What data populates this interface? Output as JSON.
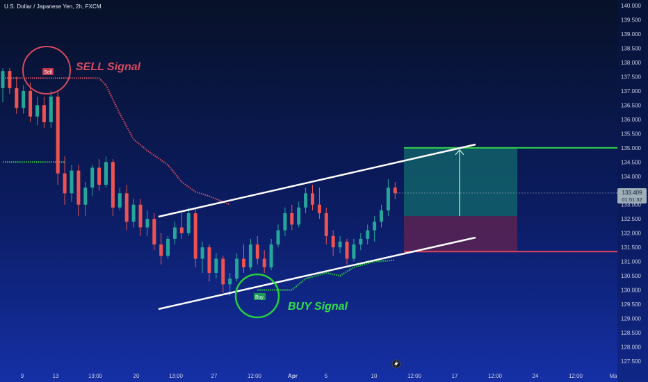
{
  "chart_data": {
    "type": "candlestick",
    "title": "U.S. Dollar / Japanese Yen, 2h, FXCM",
    "ylim": [
      127.4,
      140.1
    ],
    "y_ticks": [
      "140.000",
      "139.500",
      "139.000",
      "138.500",
      "138.000",
      "137.500",
      "137.000",
      "136.500",
      "136.000",
      "135.500",
      "135.000",
      "134.500",
      "134.000",
      "133.500",
      "133.000",
      "132.500",
      "132.000",
      "131.500",
      "131.000",
      "130.500",
      "130.000",
      "129.500",
      "129.000",
      "128.500",
      "128.000",
      "127.500"
    ],
    "x_tick_labels": [
      "9",
      "13",
      "13:00",
      "20",
      "13:00",
      "27",
      "12:00",
      "Apr",
      "5",
      "10",
      "12:00",
      "17",
      "12:00",
      "24",
      "12:00",
      "Ma"
    ],
    "price_label": {
      "value": "133.409",
      "timer": "01:51:32"
    },
    "annotations": {
      "sell_text": "SELL Signal",
      "buy_text": "BUY Signal",
      "sell_marker": "Sell",
      "buy_marker": "Buy"
    },
    "candles": [
      [
        137.1,
        137.8,
        136.6,
        137.7
      ],
      [
        137.7,
        137.8,
        136.9,
        137.1
      ],
      [
        137.1,
        137.5,
        136.2,
        136.4
      ],
      [
        136.4,
        137.2,
        136.2,
        137.0
      ],
      [
        137.0,
        137.3,
        135.9,
        136.1
      ],
      [
        136.1,
        136.8,
        135.8,
        136.5
      ],
      [
        136.5,
        136.8,
        135.7,
        135.9
      ],
      [
        135.9,
        137.0,
        135.7,
        136.8
      ],
      [
        136.8,
        137.0,
        133.7,
        134.1
      ],
      [
        134.1,
        134.7,
        133.0,
        133.4
      ],
      [
        133.4,
        134.4,
        133.1,
        134.2
      ],
      [
        134.2,
        134.4,
        132.6,
        133.0
      ],
      [
        133.0,
        133.8,
        132.6,
        133.6
      ],
      [
        133.6,
        134.4,
        133.3,
        134.3
      ],
      [
        134.3,
        134.6,
        133.5,
        133.7
      ],
      [
        133.7,
        134.7,
        133.6,
        134.5
      ],
      [
        134.5,
        134.6,
        132.6,
        132.9
      ],
      [
        132.9,
        133.6,
        132.8,
        133.4
      ],
      [
        133.4,
        133.7,
        132.1,
        132.4
      ],
      [
        132.4,
        133.2,
        132.2,
        133.0
      ],
      [
        133.0,
        133.2,
        131.9,
        132.2
      ],
      [
        132.2,
        132.8,
        131.9,
        132.5
      ],
      [
        132.5,
        132.7,
        131.4,
        131.6
      ],
      [
        131.6,
        132.0,
        130.9,
        131.2
      ],
      [
        131.2,
        131.9,
        131.1,
        131.8
      ],
      [
        131.8,
        132.4,
        131.6,
        132.2
      ],
      [
        132.2,
        132.7,
        131.8,
        132.0
      ],
      [
        132.0,
        132.9,
        131.9,
        132.7
      ],
      [
        132.7,
        132.9,
        130.8,
        131.1
      ],
      [
        131.1,
        131.7,
        130.6,
        131.5
      ],
      [
        131.5,
        131.6,
        130.3,
        130.6
      ],
      [
        130.6,
        131.3,
        130.4,
        131.1
      ],
      [
        131.1,
        131.2,
        129.9,
        130.2
      ],
      [
        130.2,
        130.6,
        129.8,
        130.4
      ],
      [
        130.4,
        131.3,
        130.3,
        131.1
      ],
      [
        131.1,
        131.6,
        130.6,
        130.8
      ],
      [
        130.8,
        131.8,
        130.7,
        131.6
      ],
      [
        131.6,
        131.9,
        130.9,
        131.1
      ],
      [
        131.1,
        131.4,
        130.6,
        130.8
      ],
      [
        130.8,
        131.8,
        130.7,
        131.6
      ],
      [
        131.6,
        132.3,
        131.5,
        132.1
      ],
      [
        132.1,
        132.9,
        131.9,
        132.7
      ],
      [
        132.7,
        133.0,
        132.1,
        132.3
      ],
      [
        132.3,
        133.1,
        132.2,
        132.9
      ],
      [
        132.9,
        133.6,
        132.7,
        133.4
      ],
      [
        133.4,
        133.7,
        132.8,
        133.0
      ],
      [
        133.0,
        133.6,
        132.5,
        132.7
      ],
      [
        132.7,
        132.9,
        131.6,
        131.9
      ],
      [
        131.9,
        132.1,
        131.2,
        131.5
      ],
      [
        131.5,
        131.9,
        131.3,
        131.7
      ],
      [
        131.7,
        131.8,
        130.9,
        131.1
      ],
      [
        131.1,
        131.8,
        131.0,
        131.6
      ],
      [
        131.6,
        132.0,
        131.4,
        131.8
      ],
      [
        131.8,
        132.3,
        131.6,
        132.1
      ],
      [
        132.1,
        132.6,
        131.7,
        132.4
      ],
      [
        132.4,
        133.0,
        132.2,
        132.8
      ],
      [
        132.8,
        133.9,
        132.6,
        133.6
      ],
      [
        133.6,
        133.8,
        133.2,
        133.4
      ]
    ],
    "sell_line": [
      [
        0,
        137.45
      ],
      [
        14,
        137.45
      ],
      [
        15,
        137.2
      ],
      [
        17,
        136.2
      ],
      [
        19,
        135.3
      ],
      [
        21,
        134.9
      ],
      [
        24,
        134.4
      ],
      [
        26,
        133.8
      ],
      [
        28,
        133.45
      ],
      [
        30,
        133.3
      ],
      [
        33,
        133.0
      ]
    ],
    "buy_line": [
      [
        0,
        134.5
      ],
      [
        8,
        134.5
      ],
      [
        9,
        134.5
      ]
    ],
    "buy_line2": [
      [
        37,
        130.0
      ],
      [
        42,
        130.0
      ],
      [
        44,
        130.4
      ],
      [
        47,
        130.6
      ],
      [
        49,
        130.5
      ],
      [
        51,
        130.8
      ],
      [
        54,
        131.0
      ],
      [
        57,
        131.05
      ]
    ],
    "channel_upper": [
      [
        228,
        312
      ],
      [
        684,
        208
      ]
    ],
    "channel_lower": [
      [
        228,
        445
      ],
      [
        684,
        342
      ]
    ],
    "position": {
      "entry": 132.6,
      "target": 135.0,
      "stop": 131.35
    },
    "colors": {
      "up": "#26a69a",
      "down": "#ef5350",
      "sell": "#d84a5f",
      "buy": "#2ecc40",
      "profit": "#10606a",
      "loss": "#5a2352"
    }
  }
}
